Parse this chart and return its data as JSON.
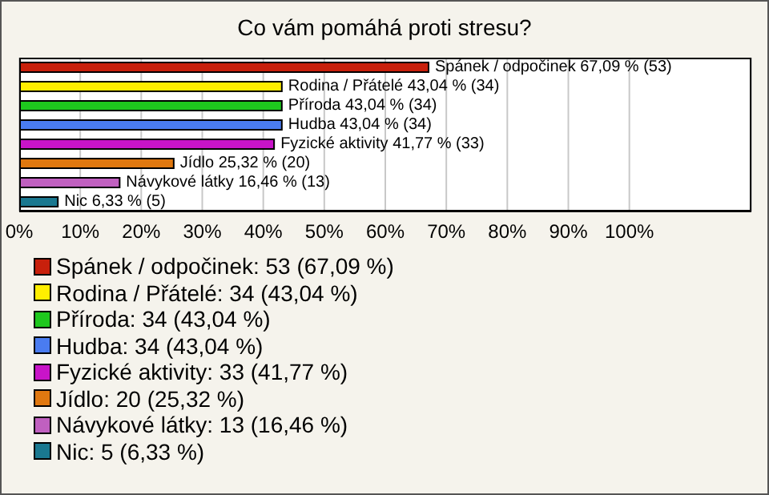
{
  "chart_data": {
    "type": "bar",
    "orientation": "horizontal",
    "stacked": true,
    "title": "Co vám pomáhá proti stresu?",
    "categories": [
      null,
      null,
      null,
      null,
      null,
      null,
      null,
      null
    ],
    "series": [
      {
        "name": "Spánek / odpočinek: 53 (67,09 %)",
        "color": "#c8200c",
        "values": [
          67.09,
          null,
          null,
          null,
          null,
          null,
          null,
          null
        ],
        "value_labels": [
          "Spánek / odpočinek 67,09 % (53)",
          null,
          null,
          null,
          null,
          null,
          null,
          null
        ]
      },
      {
        "name": "Rodina / Přátelé: 34 (43,04 %)",
        "color": "#ffee00",
        "values": [
          null,
          43.04,
          null,
          null,
          null,
          null,
          null,
          null
        ],
        "value_labels": [
          null,
          "Rodina / Přátelé 43,04 % (34)",
          null,
          null,
          null,
          null,
          null,
          null
        ]
      },
      {
        "name": "Příroda: 34 (43,04 %)",
        "color": "#1ec81e",
        "values": [
          null,
          null,
          43.04,
          null,
          null,
          null,
          null,
          null
        ],
        "value_labels": [
          null,
          null,
          "Příroda 43,04 % (34)",
          null,
          null,
          null,
          null,
          null
        ]
      },
      {
        "name": "Hudba: 34 (43,04 %)",
        "color": "#4a7cf0",
        "values": [
          null,
          null,
          null,
          43.04,
          null,
          null,
          null,
          null
        ],
        "value_labels": [
          null,
          null,
          null,
          "Hudba 43,04 % (34)",
          null,
          null,
          null,
          null
        ]
      },
      {
        "name": "Fyzické aktivity: 33 (41,77 %)",
        "color": "#c814c8",
        "values": [
          null,
          null,
          null,
          null,
          41.77,
          null,
          null,
          null
        ],
        "value_labels": [
          null,
          null,
          null,
          null,
          "Fyzické aktivity 41,77 % (33)",
          null,
          null,
          null
        ]
      },
      {
        "name": "Jídlo: 20 (25,32 %)",
        "color": "#e07810",
        "values": [
          null,
          null,
          null,
          null,
          null,
          25.32,
          null,
          null
        ],
        "value_labels": [
          null,
          null,
          null,
          null,
          null,
          "Jídlo 25,32 % (20)",
          null,
          null
        ]
      },
      {
        "name": "Návykové látky: 13 (16,46 %)",
        "color": "#c060c0",
        "values": [
          null,
          null,
          null,
          null,
          null,
          null,
          16.46,
          null
        ],
        "value_labels": [
          null,
          null,
          null,
          null,
          null,
          null,
          "Návykové látky 16,46 % (13)",
          null
        ]
      },
      {
        "name": "Nic: 5 (6,33 %)",
        "color": "#1a7890",
        "values": [
          null,
          null,
          null,
          null,
          null,
          null,
          null,
          6.33
        ],
        "value_labels": [
          null,
          null,
          null,
          null,
          null,
          null,
          null,
          "Nic 6,33 % (5)"
        ]
      }
    ],
    "xlim": [
      0,
      120
    ],
    "xticks": [
      {
        "value": 0,
        "label": "0%"
      },
      {
        "value": 10,
        "label": "10%"
      },
      {
        "value": 20,
        "label": "20%"
      },
      {
        "value": 30,
        "label": "30%"
      },
      {
        "value": 40,
        "label": "40%"
      },
      {
        "value": 50,
        "label": "50%"
      },
      {
        "value": 60,
        "label": "60%"
      },
      {
        "value": 70,
        "label": "70%"
      },
      {
        "value": 80,
        "label": "80%"
      },
      {
        "value": 90,
        "label": "90%"
      },
      {
        "value": 100,
        "label": "100%"
      }
    ],
    "grid": "x",
    "legend": "bottom",
    "tick_labels": "x"
  }
}
